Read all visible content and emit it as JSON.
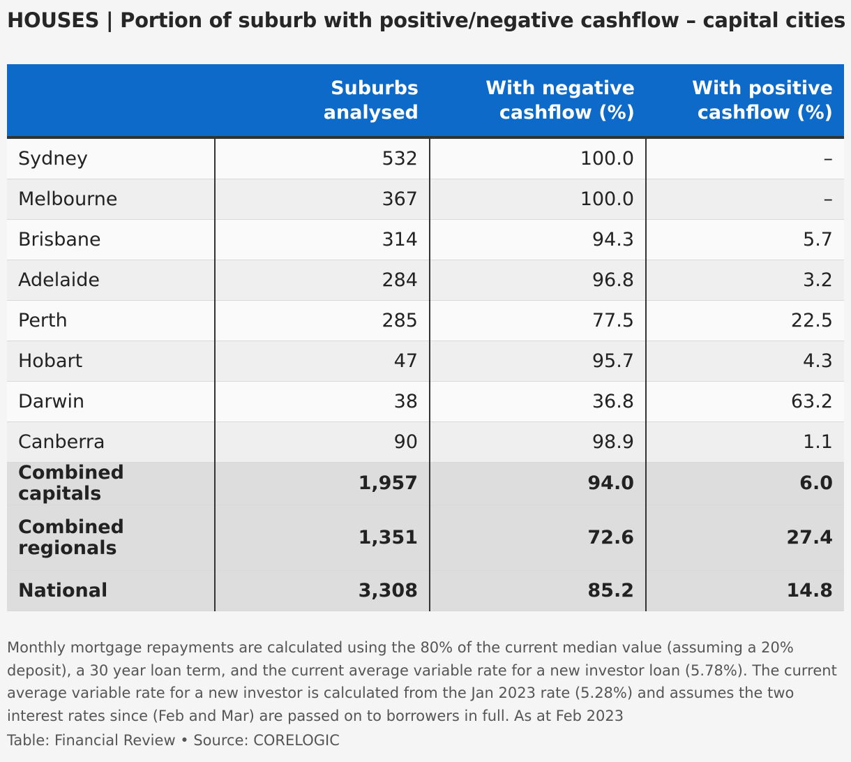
{
  "title": "HOUSES | Portion of suburb with positive/negative cashflow – capital cities",
  "chart_data": {
    "type": "table",
    "title": "HOUSES | Portion of suburb with positive/negative cashflow – capital cities",
    "columns": [
      "",
      "Suburbs analysed",
      "With negative cashflow (%)",
      "With positive cashflow (%)"
    ],
    "rows": [
      {
        "label": "Sydney",
        "cells": [
          "532",
          "100.0",
          "–"
        ],
        "style": "normal"
      },
      {
        "label": "Melbourne",
        "cells": [
          "367",
          "100.0",
          "–"
        ],
        "style": "normal"
      },
      {
        "label": "Brisbane",
        "cells": [
          "314",
          "94.3",
          "5.7"
        ],
        "style": "normal"
      },
      {
        "label": "Adelaide",
        "cells": [
          "284",
          "96.8",
          "3.2"
        ],
        "style": "normal"
      },
      {
        "label": "Perth",
        "cells": [
          "285",
          "77.5",
          "22.5"
        ],
        "style": "normal"
      },
      {
        "label": "Hobart",
        "cells": [
          "47",
          "95.7",
          "4.3"
        ],
        "style": "normal"
      },
      {
        "label": "Darwin",
        "cells": [
          "38",
          "36.8",
          "63.2"
        ],
        "style": "normal"
      },
      {
        "label": "Canberra",
        "cells": [
          "90",
          "98.9",
          "1.1"
        ],
        "style": "normal"
      },
      {
        "label": "Combined capitals",
        "cells": [
          "1,957",
          "94.0",
          "6.0"
        ],
        "style": "bold"
      },
      {
        "label": "Combined regionals",
        "cells": [
          "1,351",
          "72.6",
          "27.4"
        ],
        "style": "bold"
      },
      {
        "label": "National",
        "cells": [
          "3,308",
          "85.2",
          "14.8"
        ],
        "style": "bold"
      }
    ]
  },
  "header_color": "#0e6ac9",
  "footnote": "Monthly mortgage repayments are calculated using the 80% of the current median value (assuming a 20% deposit), a 30 year loan term,  and the current average variable rate for a new investor loan (5.78%). The current average variable rate for a new investor is calculated from the Jan 2023 rate (5.28%) and assumes the two interest rates since (Feb and Mar) are passed on to borrowers in full. As at Feb 2023",
  "source": "Table: Financial Review • Source: CORELOGIC"
}
